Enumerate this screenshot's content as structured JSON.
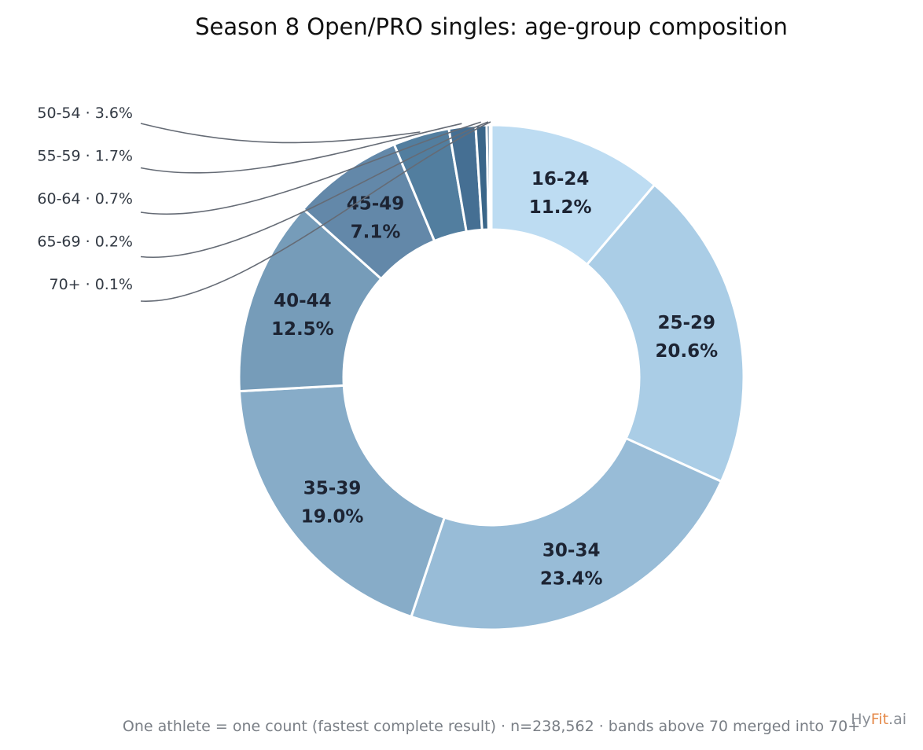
{
  "chart_data": {
    "type": "pie",
    "variant": "donut",
    "title": "Season 8 Open/PRO singles: age-group composition",
    "categories": [
      "16-24",
      "25-29",
      "30-34",
      "35-39",
      "40-44",
      "45-49",
      "50-54",
      "55-59",
      "60-64",
      "65-69",
      "70+"
    ],
    "values": [
      11.2,
      20.6,
      23.4,
      19.0,
      12.5,
      7.1,
      3.6,
      1.7,
      0.7,
      0.2,
      0.1
    ],
    "value_labels": [
      "11.2%",
      "20.6%",
      "23.4%",
      "19.0%",
      "12.5%",
      "7.1%",
      "3.6%",
      "1.7%",
      "0.7%",
      "0.2%",
      "0.1%"
    ],
    "unit": "%",
    "colors": [
      "#bddcf2",
      "#aacde6",
      "#98bcd7",
      "#87acc8",
      "#769cb9",
      "#6388a9",
      "#527e9f",
      "#456f93",
      "#3a6689",
      "#2f5c80",
      "#254e71"
    ],
    "callout_categories": [
      "50-54",
      "55-59",
      "60-64",
      "65-69",
      "70+"
    ],
    "callout_separator": "·",
    "footer_note": "One athlete = one count (fastest complete result)  ·  n=238,562  ·  bands above 70 merged into 70+",
    "legend": "none"
  },
  "branding": {
    "prefix": "Hy",
    "highlight": "Fit",
    "suffix": ".ai",
    "prefix_color": "#8a8f96",
    "highlight_color": "#e58a4a"
  }
}
